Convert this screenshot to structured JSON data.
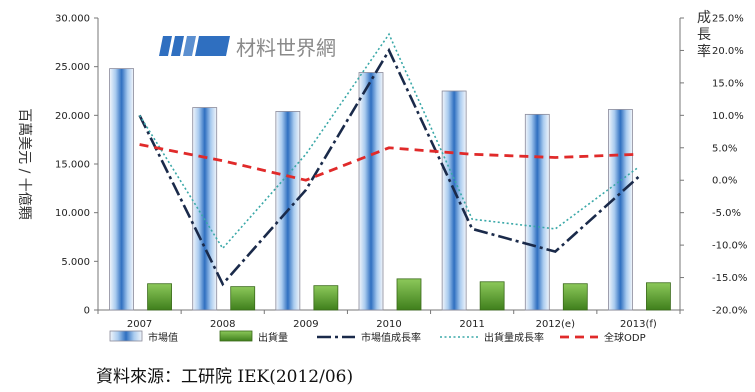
{
  "chart_data": {
    "type": "bar",
    "categories": [
      "2007",
      "2008",
      "2009",
      "2010",
      "2011",
      "2012(e)",
      "2013(f)"
    ],
    "ylabel": "百萬美元 / 十億顆",
    "y2label": "成長率",
    "ylim": [
      0,
      30000
    ],
    "y2lim": [
      -20,
      25
    ],
    "y_ticks": [
      "0",
      "5.000",
      "10.000",
      "15.000",
      "20.000",
      "25.000",
      "30.000"
    ],
    "y2_ticks": [
      "-20.0%",
      "-15.0%",
      "-10.0%",
      "-5.0%",
      "0.0%",
      "5.0%",
      "10.0%",
      "15.0%",
      "20.0%",
      "25.0%"
    ],
    "series": [
      {
        "name": "市場值",
        "type": "bar",
        "axis": "left",
        "color": "#4a8fd4",
        "values": [
          24800,
          20800,
          20400,
          24400,
          22500,
          20100,
          20600
        ]
      },
      {
        "name": "出貨量",
        "type": "bar",
        "axis": "left",
        "color": "#5aa02c",
        "values": [
          2700,
          2400,
          2500,
          3200,
          2900,
          2700,
          2800
        ]
      },
      {
        "name": "市場值成長率",
        "type": "line",
        "axis": "right",
        "style": "dashdot",
        "color": "#1a2a4a",
        "values": [
          10.0,
          -16.0,
          -1.5,
          20.0,
          -7.5,
          -11.0,
          0.5
        ]
      },
      {
        "name": "出貨量成長率",
        "type": "line",
        "axis": "right",
        "style": "dotted",
        "color": "#3aa8a8",
        "values": [
          10.0,
          -10.5,
          4.0,
          22.5,
          -6.0,
          -7.5,
          2.0
        ]
      },
      {
        "name": "全球ODP",
        "type": "line",
        "axis": "right",
        "style": "dashed",
        "color": "#e02a2a",
        "values": [
          5.5,
          3.0,
          0.0,
          5.0,
          4.0,
          3.5,
          4.0
        ]
      }
    ],
    "grid": false,
    "legend": "bottom"
  },
  "watermark": "材料世界網",
  "source": "資料來源：工研院 IEK(2012/06)"
}
